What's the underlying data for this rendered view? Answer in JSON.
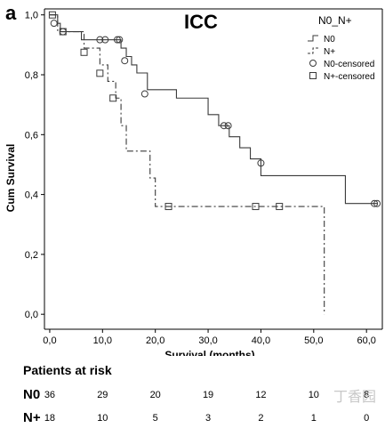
{
  "chart_data": {
    "type": "line",
    "panel_letter": "a",
    "title": "ICC",
    "xlabel": "Survival (months)",
    "ylabel": "Cum Survival",
    "xlim": [
      -1,
      63
    ],
    "ylim": [
      -0.05,
      1.02
    ],
    "x_ticks": [
      "0,0",
      "10,0",
      "20,0",
      "30,0",
      "40,0",
      "50,0",
      "60,0"
    ],
    "x_tick_values": [
      0,
      10,
      20,
      30,
      40,
      50,
      60
    ],
    "y_ticks": [
      "0,0",
      "0,2",
      "0,4",
      "0,6",
      "0,8",
      "1,0"
    ],
    "y_tick_values": [
      0,
      0.2,
      0.4,
      0.6,
      0.8,
      1.0
    ],
    "legend": {
      "title": "N0_N+",
      "placement": "top-right",
      "entries": [
        "N0",
        "N+",
        "N0-censored",
        "N+-censored"
      ]
    },
    "series": [
      {
        "name": "N0",
        "style": "solid",
        "color": "#3a3a3a",
        "step_x": [
          0,
          1.5,
          2,
          6,
          13.5,
          14.5,
          15.5,
          16.5,
          18.5,
          24,
          30,
          32,
          34,
          36,
          38,
          40,
          56,
          62
        ],
        "step_y": [
          1.0,
          0.972,
          0.944,
          0.917,
          0.889,
          0.861,
          0.833,
          0.806,
          0.75,
          0.722,
          0.667,
          0.63,
          0.593,
          0.556,
          0.519,
          0.463,
          0.37,
          0.37
        ],
        "censored_x": [
          0.8,
          2.5,
          9.5,
          10.5,
          12.8,
          13.2,
          14.2,
          18.0,
          33.0,
          33.8,
          40.0,
          61.5,
          62.0
        ],
        "censored_y": [
          0.972,
          0.944,
          0.917,
          0.917,
          0.917,
          0.917,
          0.847,
          0.736,
          0.63,
          0.63,
          0.505,
          0.37,
          0.37
        ]
      },
      {
        "name": "N+",
        "style": "dash-dot",
        "color": "#3a3a3a",
        "step_x": [
          0,
          1.5,
          6.5,
          9.5,
          11,
          12.5,
          13.5,
          14.5,
          19,
          20,
          52,
          52
        ],
        "step_y": [
          1.0,
          0.944,
          0.889,
          0.833,
          0.778,
          0.722,
          0.63,
          0.545,
          0.455,
          0.36,
          0.36,
          0.0
        ],
        "censored_x": [
          0.5,
          2.5,
          6.5,
          9.5,
          12.0,
          22.5,
          39.0,
          43.5
        ],
        "censored_y": [
          1.0,
          0.944,
          0.875,
          0.805,
          0.722,
          0.36,
          0.36,
          0.36
        ]
      }
    ]
  },
  "at_risk": {
    "title": "Patients at risk",
    "time_points": [
      0,
      10,
      20,
      30,
      40,
      50,
      60
    ],
    "rows": [
      {
        "label": "N0",
        "values": [
          "36",
          "29",
          "20",
          "19",
          "12",
          "10",
          "8"
        ]
      },
      {
        "label": "N+",
        "values": [
          "18",
          "10",
          "5",
          "3",
          "2",
          "1",
          "0"
        ]
      }
    ]
  },
  "watermark": "丁香园"
}
